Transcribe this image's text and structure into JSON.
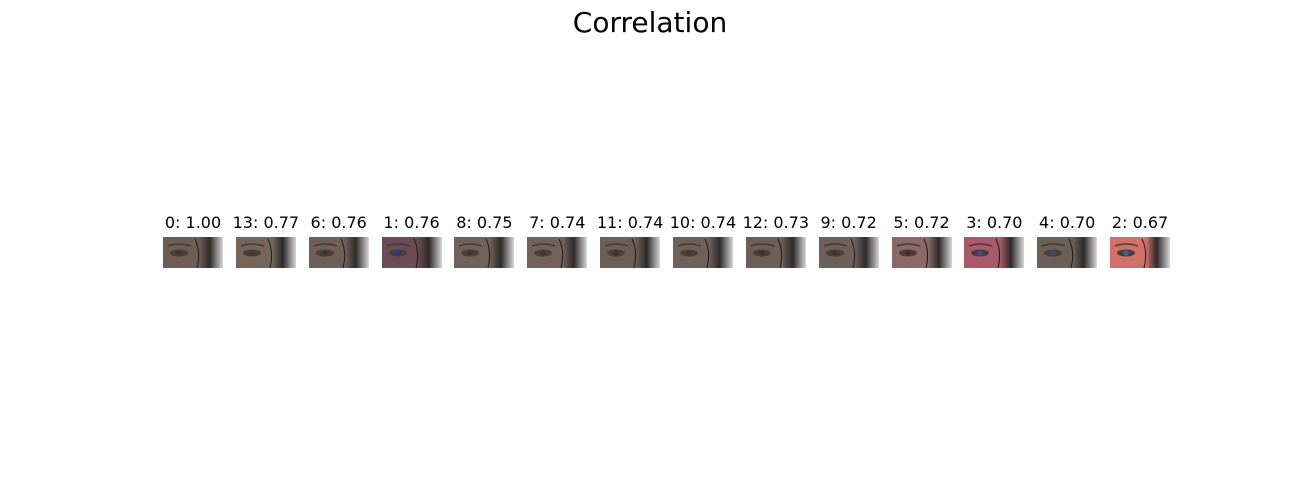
{
  "chart_data": {
    "type": "image-grid",
    "title": "Correlation",
    "items": [
      {
        "index": 0,
        "score": 1.0,
        "label": "0: 1.00",
        "tint": "#6e5d52",
        "accent": "#3a3a3a"
      },
      {
        "index": 13,
        "score": 0.77,
        "label": "13: 0.77",
        "tint": "#76665a",
        "accent": "#3d3a38"
      },
      {
        "index": 6,
        "score": 0.76,
        "label": "6: 0.76",
        "tint": "#6f6057",
        "accent": "#3a3836"
      },
      {
        "index": 1,
        "score": 0.76,
        "label": "1: 0.76",
        "tint": "#6b4b55",
        "accent": "#2a3a8a"
      },
      {
        "index": 8,
        "score": 0.75,
        "label": "8: 0.75",
        "tint": "#70625a",
        "accent": "#3a3836"
      },
      {
        "index": 7,
        "score": 0.74,
        "label": "7: 0.74",
        "tint": "#736258",
        "accent": "#3b3836"
      },
      {
        "index": 11,
        "score": 0.74,
        "label": "11: 0.74",
        "tint": "#6e5f56",
        "accent": "#3a3836"
      },
      {
        "index": 10,
        "score": 0.74,
        "label": "10: 0.74",
        "tint": "#6f6058",
        "accent": "#3b3836"
      },
      {
        "index": 12,
        "score": 0.73,
        "label": "12: 0.73",
        "tint": "#6d5e56",
        "accent": "#393735"
      },
      {
        "index": 9,
        "score": 0.72,
        "label": "9: 0.72",
        "tint": "#6c6058",
        "accent": "#3a3836"
      },
      {
        "index": 5,
        "score": 0.72,
        "label": "5: 0.72",
        "tint": "#8a6a68",
        "accent": "#4a2a3a"
      },
      {
        "index": 3,
        "score": 0.7,
        "label": "3: 0.70",
        "tint": "#a65a6c",
        "accent": "#4a4a8a"
      },
      {
        "index": 4,
        "score": 0.7,
        "label": "4: 0.70",
        "tint": "#6a6058",
        "accent": "#3a4a6a"
      },
      {
        "index": 2,
        "score": 0.67,
        "label": "2: 0.67",
        "tint": "#d0706a",
        "accent": "#4a5a9a"
      }
    ]
  }
}
